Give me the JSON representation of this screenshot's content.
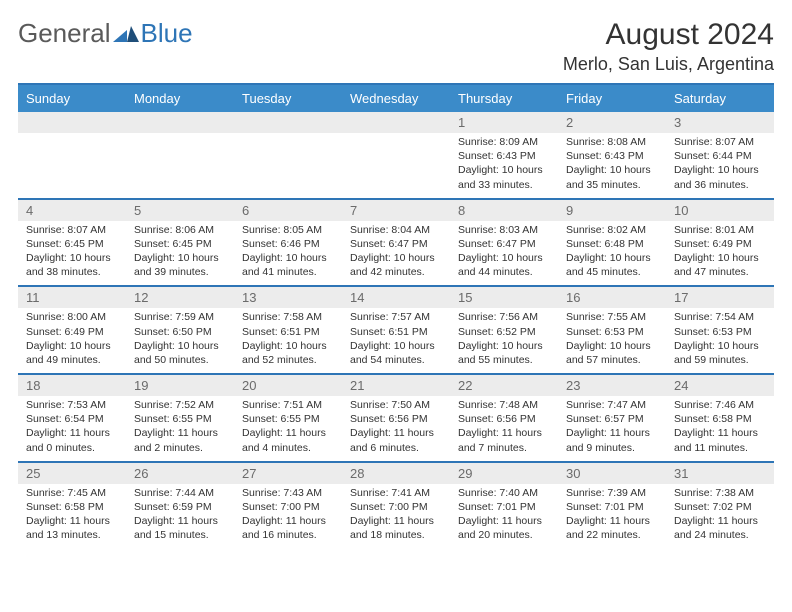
{
  "logo": {
    "word1": "General",
    "word2": "Blue"
  },
  "title": "August 2024",
  "location": "Merlo, San Luis, Argentina",
  "colors": {
    "headerBar": "#3b8bc9",
    "ruleLine": "#2e75b6",
    "numRowBg": "#ececec",
    "textMuted": "#6b6b6b",
    "textBody": "#333333"
  },
  "dayNames": [
    "Sunday",
    "Monday",
    "Tuesday",
    "Wednesday",
    "Thursday",
    "Friday",
    "Saturday"
  ],
  "weeks": [
    [
      null,
      null,
      null,
      null,
      {
        "n": "1",
        "sr": "Sunrise: 8:09 AM",
        "ss": "Sunset: 6:43 PM",
        "dl1": "Daylight: 10 hours",
        "dl2": "and 33 minutes."
      },
      {
        "n": "2",
        "sr": "Sunrise: 8:08 AM",
        "ss": "Sunset: 6:43 PM",
        "dl1": "Daylight: 10 hours",
        "dl2": "and 35 minutes."
      },
      {
        "n": "3",
        "sr": "Sunrise: 8:07 AM",
        "ss": "Sunset: 6:44 PM",
        "dl1": "Daylight: 10 hours",
        "dl2": "and 36 minutes."
      }
    ],
    [
      {
        "n": "4",
        "sr": "Sunrise: 8:07 AM",
        "ss": "Sunset: 6:45 PM",
        "dl1": "Daylight: 10 hours",
        "dl2": "and 38 minutes."
      },
      {
        "n": "5",
        "sr": "Sunrise: 8:06 AM",
        "ss": "Sunset: 6:45 PM",
        "dl1": "Daylight: 10 hours",
        "dl2": "and 39 minutes."
      },
      {
        "n": "6",
        "sr": "Sunrise: 8:05 AM",
        "ss": "Sunset: 6:46 PM",
        "dl1": "Daylight: 10 hours",
        "dl2": "and 41 minutes."
      },
      {
        "n": "7",
        "sr": "Sunrise: 8:04 AM",
        "ss": "Sunset: 6:47 PM",
        "dl1": "Daylight: 10 hours",
        "dl2": "and 42 minutes."
      },
      {
        "n": "8",
        "sr": "Sunrise: 8:03 AM",
        "ss": "Sunset: 6:47 PM",
        "dl1": "Daylight: 10 hours",
        "dl2": "and 44 minutes."
      },
      {
        "n": "9",
        "sr": "Sunrise: 8:02 AM",
        "ss": "Sunset: 6:48 PM",
        "dl1": "Daylight: 10 hours",
        "dl2": "and 45 minutes."
      },
      {
        "n": "10",
        "sr": "Sunrise: 8:01 AM",
        "ss": "Sunset: 6:49 PM",
        "dl1": "Daylight: 10 hours",
        "dl2": "and 47 minutes."
      }
    ],
    [
      {
        "n": "11",
        "sr": "Sunrise: 8:00 AM",
        "ss": "Sunset: 6:49 PM",
        "dl1": "Daylight: 10 hours",
        "dl2": "and 49 minutes."
      },
      {
        "n": "12",
        "sr": "Sunrise: 7:59 AM",
        "ss": "Sunset: 6:50 PM",
        "dl1": "Daylight: 10 hours",
        "dl2": "and 50 minutes."
      },
      {
        "n": "13",
        "sr": "Sunrise: 7:58 AM",
        "ss": "Sunset: 6:51 PM",
        "dl1": "Daylight: 10 hours",
        "dl2": "and 52 minutes."
      },
      {
        "n": "14",
        "sr": "Sunrise: 7:57 AM",
        "ss": "Sunset: 6:51 PM",
        "dl1": "Daylight: 10 hours",
        "dl2": "and 54 minutes."
      },
      {
        "n": "15",
        "sr": "Sunrise: 7:56 AM",
        "ss": "Sunset: 6:52 PM",
        "dl1": "Daylight: 10 hours",
        "dl2": "and 55 minutes."
      },
      {
        "n": "16",
        "sr": "Sunrise: 7:55 AM",
        "ss": "Sunset: 6:53 PM",
        "dl1": "Daylight: 10 hours",
        "dl2": "and 57 minutes."
      },
      {
        "n": "17",
        "sr": "Sunrise: 7:54 AM",
        "ss": "Sunset: 6:53 PM",
        "dl1": "Daylight: 10 hours",
        "dl2": "and 59 minutes."
      }
    ],
    [
      {
        "n": "18",
        "sr": "Sunrise: 7:53 AM",
        "ss": "Sunset: 6:54 PM",
        "dl1": "Daylight: 11 hours",
        "dl2": "and 0 minutes."
      },
      {
        "n": "19",
        "sr": "Sunrise: 7:52 AM",
        "ss": "Sunset: 6:55 PM",
        "dl1": "Daylight: 11 hours",
        "dl2": "and 2 minutes."
      },
      {
        "n": "20",
        "sr": "Sunrise: 7:51 AM",
        "ss": "Sunset: 6:55 PM",
        "dl1": "Daylight: 11 hours",
        "dl2": "and 4 minutes."
      },
      {
        "n": "21",
        "sr": "Sunrise: 7:50 AM",
        "ss": "Sunset: 6:56 PM",
        "dl1": "Daylight: 11 hours",
        "dl2": "and 6 minutes."
      },
      {
        "n": "22",
        "sr": "Sunrise: 7:48 AM",
        "ss": "Sunset: 6:56 PM",
        "dl1": "Daylight: 11 hours",
        "dl2": "and 7 minutes."
      },
      {
        "n": "23",
        "sr": "Sunrise: 7:47 AM",
        "ss": "Sunset: 6:57 PM",
        "dl1": "Daylight: 11 hours",
        "dl2": "and 9 minutes."
      },
      {
        "n": "24",
        "sr": "Sunrise: 7:46 AM",
        "ss": "Sunset: 6:58 PM",
        "dl1": "Daylight: 11 hours",
        "dl2": "and 11 minutes."
      }
    ],
    [
      {
        "n": "25",
        "sr": "Sunrise: 7:45 AM",
        "ss": "Sunset: 6:58 PM",
        "dl1": "Daylight: 11 hours",
        "dl2": "and 13 minutes."
      },
      {
        "n": "26",
        "sr": "Sunrise: 7:44 AM",
        "ss": "Sunset: 6:59 PM",
        "dl1": "Daylight: 11 hours",
        "dl2": "and 15 minutes."
      },
      {
        "n": "27",
        "sr": "Sunrise: 7:43 AM",
        "ss": "Sunset: 7:00 PM",
        "dl1": "Daylight: 11 hours",
        "dl2": "and 16 minutes."
      },
      {
        "n": "28",
        "sr": "Sunrise: 7:41 AM",
        "ss": "Sunset: 7:00 PM",
        "dl1": "Daylight: 11 hours",
        "dl2": "and 18 minutes."
      },
      {
        "n": "29",
        "sr": "Sunrise: 7:40 AM",
        "ss": "Sunset: 7:01 PM",
        "dl1": "Daylight: 11 hours",
        "dl2": "and 20 minutes."
      },
      {
        "n": "30",
        "sr": "Sunrise: 7:39 AM",
        "ss": "Sunset: 7:01 PM",
        "dl1": "Daylight: 11 hours",
        "dl2": "and 22 minutes."
      },
      {
        "n": "31",
        "sr": "Sunrise: 7:38 AM",
        "ss": "Sunset: 7:02 PM",
        "dl1": "Daylight: 11 hours",
        "dl2": "and 24 minutes."
      }
    ]
  ]
}
